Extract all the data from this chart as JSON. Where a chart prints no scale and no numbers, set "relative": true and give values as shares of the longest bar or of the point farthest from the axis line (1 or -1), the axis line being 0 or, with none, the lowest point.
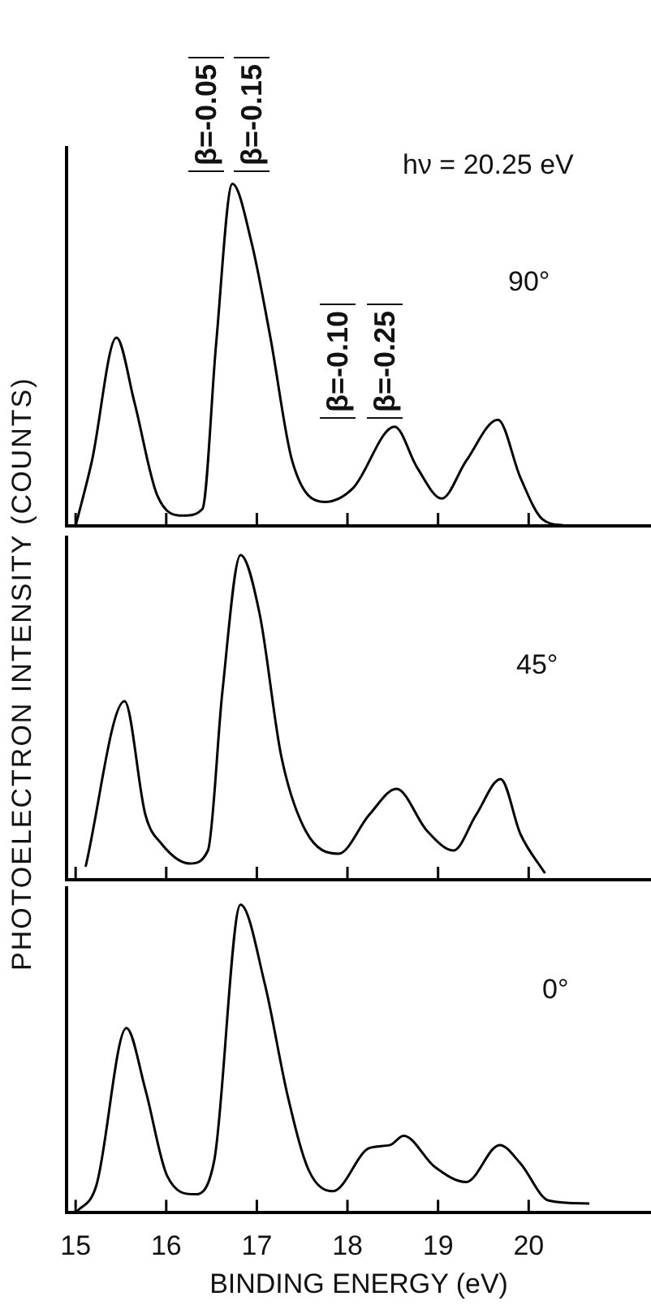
{
  "chart_data": [
    {
      "type": "line",
      "relative": true,
      "xlim": [
        14.9,
        21.35
      ],
      "xticks": [
        {
          "value": 15,
          "label": null
        },
        {
          "value": 16,
          "label": null
        },
        {
          "value": 17,
          "label": null
        },
        {
          "value": 18,
          "label": null
        },
        {
          "value": 19,
          "label": null
        },
        {
          "value": 20,
          "label": null
        }
      ],
      "tick_labels": false,
      "annotations": [
        "β=-0.05",
        "β=-0.15",
        "β=-0.10",
        "β=-0.25",
        "hν = 20.25 eV",
        "90°"
      ],
      "series": [
        {
          "color": "#000000",
          "x": [
            15.0,
            15.18,
            15.45,
            15.65,
            15.9,
            16.19,
            16.4,
            16.55,
            16.73,
            16.94,
            17.15,
            17.39,
            17.75,
            18.06,
            18.52,
            18.77,
            19.04,
            19.31,
            19.66,
            19.91,
            20.15,
            20.41
          ],
          "values": [
            0,
            0.19,
            0.55,
            0.36,
            0.09,
            0.03,
            0.05,
            0.53,
            1,
            0.83,
            0.55,
            0.19,
            0.07,
            0.11,
            0.29,
            0.17,
            0.08,
            0.19,
            0.31,
            0.14,
            0.02,
            0
          ]
        }
      ]
    },
    {
      "type": "line",
      "relative": true,
      "xlim": [
        14.9,
        21.35
      ],
      "xticks": [
        {
          "value": 15,
          "label": null
        },
        {
          "value": 16,
          "label": null
        },
        {
          "value": 17,
          "label": null
        },
        {
          "value": 18,
          "label": null
        },
        {
          "value": 19,
          "label": null
        },
        {
          "value": 20,
          "label": null
        }
      ],
      "tick_labels": false,
      "ylabel": "PHOTOELECTRON INTENSITY (COUNTS)",
      "annotations": [
        "45°"
      ],
      "series": [
        {
          "color": "#000000",
          "x": [
            15.11,
            15.54,
            15.77,
            15.95,
            16.26,
            16.46,
            16.62,
            16.82,
            17.03,
            17.27,
            17.54,
            17.9,
            18.24,
            18.54,
            18.88,
            19.17,
            19.42,
            19.69,
            19.91,
            20.18
          ],
          "values": [
            0.04,
            0.55,
            0.2,
            0.11,
            0.05,
            0.09,
            0.58,
            1,
            0.82,
            0.38,
            0.15,
            0.08,
            0.2,
            0.28,
            0.15,
            0.09,
            0.2,
            0.31,
            0.14,
            0.02
          ]
        }
      ]
    },
    {
      "type": "line",
      "relative": true,
      "xlim": [
        14.9,
        21.35
      ],
      "xticks": [
        15,
        16,
        17,
        18,
        19,
        20
      ],
      "tick_labels": "x",
      "xlabel": "BINDING ENERGY (eV)",
      "annotations": [
        "0°"
      ],
      "series": [
        {
          "color": "#000000",
          "x": [
            15.0,
            15.23,
            15.56,
            15.77,
            16.01,
            16.31,
            16.53,
            16.82,
            17.09,
            17.34,
            17.57,
            17.84,
            18.24,
            18.47,
            18.62,
            18.96,
            19.31,
            19.68,
            19.91,
            20.22,
            20.67
          ],
          "values": [
            0,
            0.09,
            0.6,
            0.4,
            0.12,
            0.06,
            0.17,
            1,
            0.74,
            0.38,
            0.14,
            0.07,
            0.21,
            0.22,
            0.25,
            0.15,
            0.1,
            0.22,
            0.16,
            0.04,
            0.03
          ]
        }
      ]
    }
  ]
}
